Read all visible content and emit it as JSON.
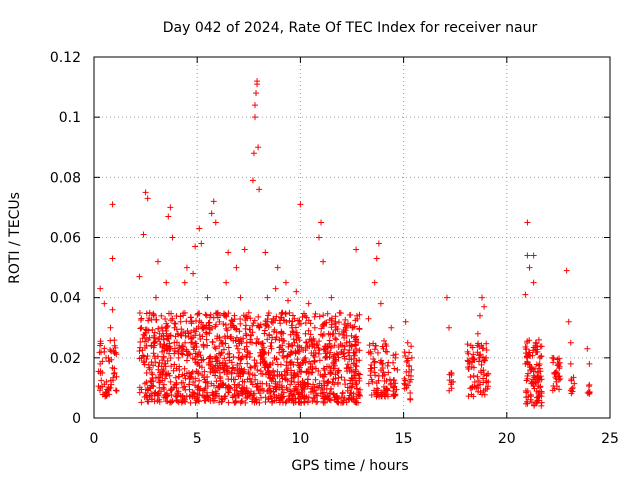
{
  "chart_data": {
    "type": "scatter",
    "title": "Day 042 of 2024, Rate Of TEC Index for receiver naur",
    "xlabel": "GPS time / hours",
    "ylabel": "ROTI / TECUs",
    "xlim": [
      0,
      25
    ],
    "ylim": [
      0,
      0.12
    ],
    "x_ticks": [
      "0",
      "5",
      "10",
      "15",
      "20",
      "25"
    ],
    "y_ticks": [
      "0",
      "0.02",
      "0.04",
      "0.06",
      "0.08",
      "0.1",
      "0.12"
    ],
    "grid": true,
    "marker": "+",
    "color": "#ff0000",
    "series": [
      {
        "values": [
          [
            0.3,
            0.043
          ],
          [
            0.3,
            0.018
          ],
          [
            0.4,
            0.015
          ],
          [
            0.5,
            0.038
          ],
          [
            0.5,
            0.022
          ],
          [
            0.6,
            0.012
          ],
          [
            0.7,
            0.02
          ],
          [
            0.8,
            0.01
          ],
          [
            0.8,
            0.03
          ],
          [
            0.9,
            0.036
          ],
          [
            0.9,
            0.053
          ],
          [
            0.9,
            0.071
          ],
          [
            1.0,
            0.024
          ],
          [
            1.0,
            0.015
          ],
          [
            1.1,
            0.009
          ],
          [
            2.2,
            0.047
          ],
          [
            2.3,
            0.03
          ],
          [
            2.3,
            0.02
          ],
          [
            2.4,
            0.061
          ],
          [
            2.5,
            0.075
          ],
          [
            2.6,
            0.073
          ],
          [
            2.7,
            0.035
          ],
          [
            2.8,
            0.015
          ],
          [
            2.9,
            0.025
          ],
          [
            3.0,
            0.04
          ],
          [
            3.1,
            0.052
          ],
          [
            3.2,
            0.012
          ],
          [
            3.3,
            0.022
          ],
          [
            3.4,
            0.018
          ],
          [
            3.5,
            0.045
          ],
          [
            3.6,
            0.067
          ],
          [
            3.7,
            0.07
          ],
          [
            3.8,
            0.06
          ],
          [
            3.9,
            0.03
          ],
          [
            4.0,
            0.01
          ],
          [
            4.1,
            0.02
          ],
          [
            4.2,
            0.032
          ],
          [
            4.4,
            0.045
          ],
          [
            4.5,
            0.05
          ],
          [
            4.6,
            0.015
          ],
          [
            4.7,
            0.025
          ],
          [
            4.8,
            0.048
          ],
          [
            4.9,
            0.057
          ],
          [
            5.0,
            0.018
          ],
          [
            5.1,
            0.063
          ],
          [
            5.2,
            0.058
          ],
          [
            5.3,
            0.03
          ],
          [
            5.4,
            0.012
          ],
          [
            5.5,
            0.04
          ],
          [
            5.6,
            0.02
          ],
          [
            5.7,
            0.068
          ],
          [
            5.8,
            0.072
          ],
          [
            5.9,
            0.065
          ],
          [
            6.0,
            0.035
          ],
          [
            6.1,
            0.015
          ],
          [
            6.2,
            0.025
          ],
          [
            6.4,
            0.045
          ],
          [
            6.5,
            0.055
          ],
          [
            6.6,
            0.01
          ],
          [
            6.8,
            0.03
          ],
          [
            6.9,
            0.05
          ],
          [
            7.0,
            0.02
          ],
          [
            7.1,
            0.04
          ],
          [
            7.2,
            0.015
          ],
          [
            7.3,
            0.056
          ],
          [
            7.4,
            0.025
          ],
          [
            7.5,
            0.035
          ],
          [
            7.6,
            0.012
          ],
          [
            7.7,
            0.079
          ],
          [
            7.75,
            0.088
          ],
          [
            7.8,
            0.1
          ],
          [
            7.8,
            0.104
          ],
          [
            7.85,
            0.108
          ],
          [
            7.9,
            0.112
          ],
          [
            7.9,
            0.111
          ],
          [
            7.95,
            0.09
          ],
          [
            8.0,
            0.076
          ],
          [
            8.0,
            0.03
          ],
          [
            8.2,
            0.02
          ],
          [
            8.3,
            0.055
          ],
          [
            8.4,
            0.04
          ],
          [
            8.5,
            0.015
          ],
          [
            8.6,
            0.025
          ],
          [
            8.8,
            0.043
          ],
          [
            8.9,
            0.05
          ],
          [
            9.0,
            0.012
          ],
          [
            9.1,
            0.035
          ],
          [
            9.2,
            0.02
          ],
          [
            9.3,
            0.045
          ],
          [
            9.4,
            0.039
          ],
          [
            9.6,
            0.03
          ],
          [
            9.7,
            0.015
          ],
          [
            9.8,
            0.042
          ],
          [
            9.9,
            0.022
          ],
          [
            10.0,
            0.071
          ],
          [
            10.1,
            0.01
          ],
          [
            10.3,
            0.025
          ],
          [
            10.4,
            0.038
          ],
          [
            10.5,
            0.018
          ],
          [
            10.7,
            0.03
          ],
          [
            10.9,
            0.06
          ],
          [
            11.0,
            0.065
          ],
          [
            11.1,
            0.052
          ],
          [
            11.2,
            0.02
          ],
          [
            11.3,
            0.012
          ],
          [
            11.5,
            0.04
          ],
          [
            11.6,
            0.028
          ],
          [
            11.8,
            0.015
          ],
          [
            11.9,
            0.035
          ],
          [
            12.0,
            0.022
          ],
          [
            12.2,
            0.03
          ],
          [
            12.4,
            0.01
          ],
          [
            12.6,
            0.018
          ],
          [
            12.7,
            0.056
          ],
          [
            12.8,
            0.025
          ],
          [
            13.3,
            0.033
          ],
          [
            13.4,
            0.022
          ],
          [
            13.5,
            0.012
          ],
          [
            13.6,
            0.045
          ],
          [
            13.7,
            0.053
          ],
          [
            13.8,
            0.058
          ],
          [
            13.9,
            0.038
          ],
          [
            14.0,
            0.018
          ],
          [
            14.2,
            0.022
          ],
          [
            14.4,
            0.03
          ],
          [
            14.5,
            0.01
          ],
          [
            14.6,
            0.02
          ],
          [
            14.7,
            0.016
          ],
          [
            15.1,
            0.032
          ],
          [
            15.2,
            0.025
          ],
          [
            15.3,
            0.012
          ],
          [
            15.4,
            0.02
          ],
          [
            17.1,
            0.04
          ],
          [
            17.2,
            0.03
          ],
          [
            17.3,
            0.015
          ],
          [
            17.4,
            0.012
          ],
          [
            18.1,
            0.022
          ],
          [
            18.2,
            0.018
          ],
          [
            18.3,
            0.01
          ],
          [
            18.4,
            0.014
          ],
          [
            18.6,
            0.028
          ],
          [
            18.7,
            0.034
          ],
          [
            18.8,
            0.04
          ],
          [
            18.9,
            0.037
          ],
          [
            19.0,
            0.02
          ],
          [
            19.1,
            0.012
          ],
          [
            20.9,
            0.041
          ],
          [
            20.9,
            0.018
          ],
          [
            21.0,
            0.065
          ],
          [
            21.0,
            0.054
          ],
          [
            21.1,
            0.05
          ],
          [
            21.2,
            0.012
          ],
          [
            21.3,
            0.045
          ],
          [
            21.3,
            0.054
          ],
          [
            21.4,
            0.025
          ],
          [
            21.5,
            0.015
          ],
          [
            21.6,
            0.02
          ],
          [
            22.2,
            0.02
          ],
          [
            22.3,
            0.015
          ],
          [
            22.4,
            0.012
          ],
          [
            22.5,
            0.018
          ],
          [
            22.9,
            0.049
          ],
          [
            23.0,
            0.032
          ],
          [
            23.1,
            0.025
          ],
          [
            23.1,
            0.018
          ],
          [
            23.2,
            0.01
          ],
          [
            23.9,
            0.023
          ],
          [
            24.0,
            0.018
          ],
          [
            24.0,
            0.011
          ]
        ]
      }
    ],
    "dense_clusters": [
      {
        "x": [
          0.2,
          1.1
        ],
        "y": [
          0.007,
          0.026
        ],
        "n": 50
      },
      {
        "x": [
          2.2,
          12.9
        ],
        "y": [
          0.005,
          0.035
        ],
        "n": 1400
      },
      {
        "x": [
          13.3,
          14.7
        ],
        "y": [
          0.007,
          0.026
        ],
        "n": 90
      },
      {
        "x": [
          15.0,
          15.4
        ],
        "y": [
          0.006,
          0.025
        ],
        "n": 25
      },
      {
        "x": [
          17.2,
          17.35
        ],
        "y": [
          0.009,
          0.016
        ],
        "n": 8
      },
      {
        "x": [
          18.1,
          19.1
        ],
        "y": [
          0.007,
          0.025
        ],
        "n": 70
      },
      {
        "x": [
          20.9,
          21.7
        ],
        "y": [
          0.004,
          0.026
        ],
        "n": 110
      },
      {
        "x": [
          22.2,
          22.6
        ],
        "y": [
          0.009,
          0.02
        ],
        "n": 25
      },
      {
        "x": [
          23.1,
          23.3
        ],
        "y": [
          0.008,
          0.014
        ],
        "n": 8
      },
      {
        "x": [
          23.9,
          24.1
        ],
        "y": [
          0.008,
          0.011
        ],
        "n": 6
      }
    ]
  }
}
